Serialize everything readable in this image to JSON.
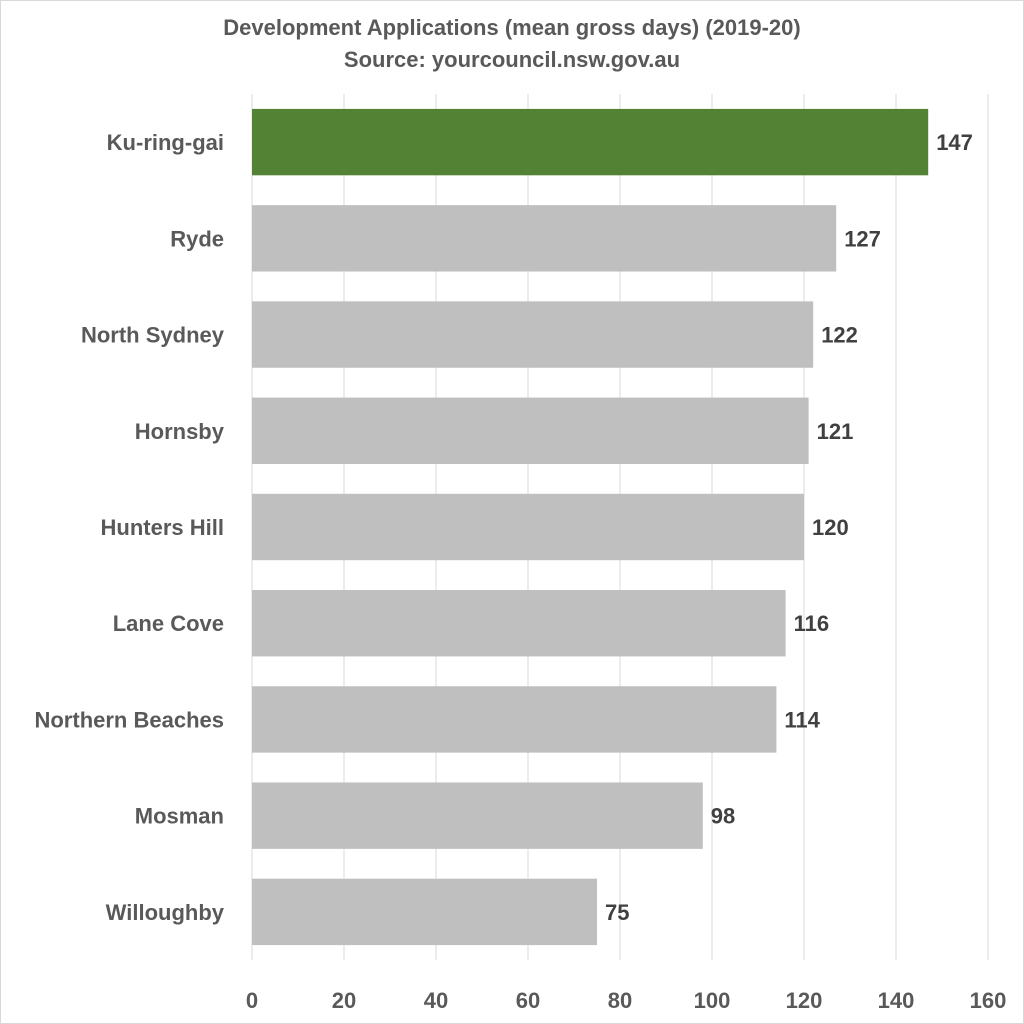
{
  "chart_data": {
    "type": "bar",
    "orientation": "horizontal",
    "title": "Development Applications (mean gross days) (2019-20)",
    "subtitle": "Source: yourcouncil.nsw.gov.au",
    "categories": [
      "Ku-ring-gai",
      "Ryde",
      "North Sydney",
      "Hornsby",
      "Hunters Hill",
      "Lane Cove",
      "Northern Beaches",
      "Mosman",
      "Willoughby"
    ],
    "values": [
      147,
      127,
      122,
      121,
      120,
      116,
      114,
      98,
      75
    ],
    "highlight_category": "Ku-ring-gai",
    "xlim": [
      0,
      160
    ],
    "xticks": [
      0,
      20,
      40,
      60,
      80,
      100,
      120,
      140,
      160
    ],
    "xlabel": "",
    "ylabel": "",
    "grid": "vertical",
    "legend": "none",
    "data_labels": true,
    "colors": {
      "highlight": "#548235",
      "default": "#bfbfbf",
      "grid": "#d9d9d9",
      "text": "#595959",
      "label": "#404040"
    }
  }
}
